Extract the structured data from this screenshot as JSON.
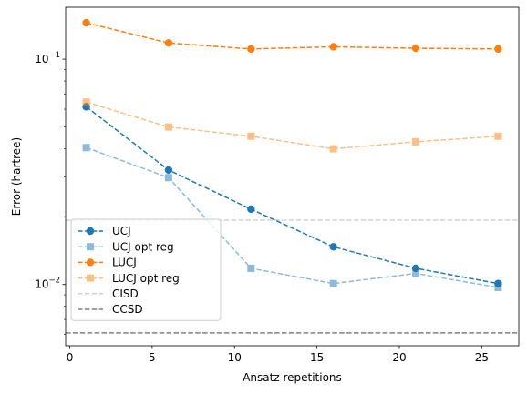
{
  "chart_data": {
    "type": "line",
    "title": "",
    "xlabel": "Ansatz repetitions",
    "ylabel": "Error (hartree)",
    "x_scale": "linear",
    "y_scale": "log",
    "xlim": [
      -0.25,
      27.25
    ],
    "ylim": [
      0.00535,
      0.17
    ],
    "x_ticks": [
      0,
      5,
      10,
      15,
      20,
      25
    ],
    "x_tick_labels": [
      "0",
      "5",
      "10",
      "15",
      "20",
      "25"
    ],
    "y_major_ticks": [
      0.01,
      0.1
    ],
    "y_tick_labels": [
      "10",
      "10"
    ],
    "y_tick_exponents": [
      "−2",
      "−1"
    ],
    "y_minor_ticks": [
      0.006,
      0.007,
      0.008,
      0.009,
      0.02,
      0.03,
      0.04,
      0.05,
      0.06,
      0.07,
      0.08,
      0.09
    ],
    "grid": false,
    "legend_position": "lower-left",
    "x": [
      1,
      6,
      11,
      16,
      21,
      26
    ],
    "series": [
      {
        "name": "UCJ",
        "values": [
          0.0615,
          0.0322,
          0.0216,
          0.0147,
          0.0118,
          0.0101
        ],
        "color": "#1f77b4",
        "marker": "circle",
        "style": "dashed",
        "alpha": 1.0
      },
      {
        "name": "UCJ opt reg",
        "values": [
          0.0405,
          0.0298,
          0.0118,
          0.0101,
          0.0112,
          0.0097
        ],
        "color": "#1f77b4",
        "marker": "square",
        "style": "dashed",
        "alpha": 0.5
      },
      {
        "name": "LUCJ",
        "values": [
          0.145,
          0.118,
          0.111,
          0.1135,
          0.1118,
          0.111
        ],
        "color": "#ff7f0e",
        "marker": "circle",
        "style": "dashed",
        "alpha": 1.0
      },
      {
        "name": "LUCJ opt reg",
        "values": [
          0.0645,
          0.05,
          0.0455,
          0.04,
          0.043,
          0.0455
        ],
        "color": "#ff7f0e",
        "marker": "square",
        "style": "dashed",
        "alpha": 0.5
      }
    ],
    "reference_lines": [
      {
        "name": "CISD",
        "value": 0.0193,
        "color": "#d3d3d3",
        "style": "dashed"
      },
      {
        "name": "CCSD",
        "value": 0.0061,
        "color": "#808080",
        "style": "dashed"
      }
    ]
  }
}
